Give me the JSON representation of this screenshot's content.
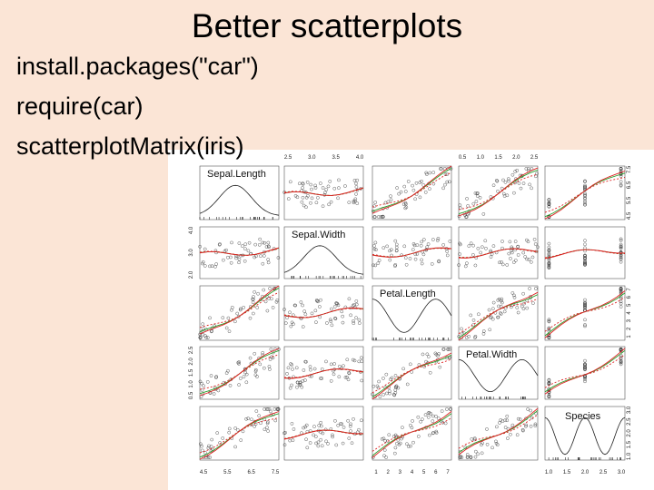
{
  "title": "Better scatterplots",
  "code": [
    "install.packages(\"car\")",
    "require(car)",
    "scatterplotMatrix(iris)"
  ],
  "matrix": {
    "variables": [
      "Sepal.Length",
      "Sepal.Width",
      "Petal.Length",
      "Petal.Width",
      "Species"
    ],
    "top_ticks": [
      null,
      [
        "2.5",
        "3.0",
        "3.5",
        "4.0"
      ],
      null,
      [
        "0.5",
        "1.0",
        "1.5",
        "2.0",
        "2.5"
      ],
      null
    ],
    "bottom_ticks": [
      [
        "4.5",
        "5.5",
        "6.5",
        "7.5"
      ],
      null,
      [
        "1",
        "2",
        "3",
        "4",
        "5",
        "6",
        "7"
      ],
      null,
      [
        "1.0",
        "1.5",
        "2.0",
        "2.5",
        "3.0"
      ]
    ],
    "left_ticks": [
      null,
      [
        "2.0",
        "3.0",
        "4.0"
      ],
      null,
      [
        "0.5",
        "1.0",
        "1.5",
        "2.0",
        "2.5"
      ],
      null
    ],
    "right_ticks": [
      [
        "4.5",
        "5.5",
        "6.5",
        "7.5"
      ],
      null,
      [
        "1",
        "2",
        "3",
        "4",
        "5",
        "6",
        "7"
      ],
      null,
      [
        "1.0",
        "1.5",
        "2.0",
        "2.5",
        "3.0"
      ]
    ]
  }
}
